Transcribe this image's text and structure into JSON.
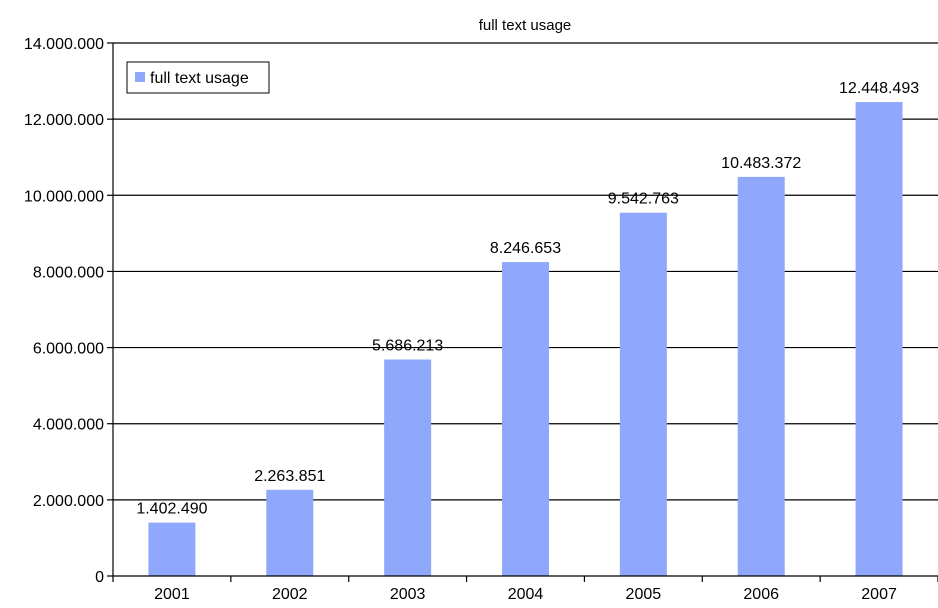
{
  "chart_data": {
    "type": "bar",
    "title": "full text usage",
    "xlabel": "",
    "ylabel": "",
    "categories": [
      "2001",
      "2002",
      "2003",
      "2004",
      "2005",
      "2006",
      "2007"
    ],
    "series": [
      {
        "name": "full text usage",
        "values": [
          1402490,
          2263851,
          5686213,
          8246653,
          9542763,
          10483372,
          12448493
        ]
      }
    ],
    "data_labels": [
      "1.402.490",
      "2.263.851",
      "5.686.213",
      "8.246.653",
      "9.542.763",
      "10.483.372",
      "12.448.493"
    ],
    "ylim": [
      0,
      14000000
    ],
    "y_ticks": [
      0,
      2000000,
      4000000,
      6000000,
      8000000,
      10000000,
      12000000,
      14000000
    ],
    "y_tick_labels": [
      "0",
      "2.000.000",
      "4.000.000",
      "6.000.000",
      "8.000.000",
      "10.000.000",
      "12.000.000",
      "14.000.000"
    ],
    "grid": true,
    "legend_position": "top-left",
    "colors": {
      "bar": "#8fa8fc",
      "grid": "#000000",
      "axis": "#000000"
    }
  }
}
